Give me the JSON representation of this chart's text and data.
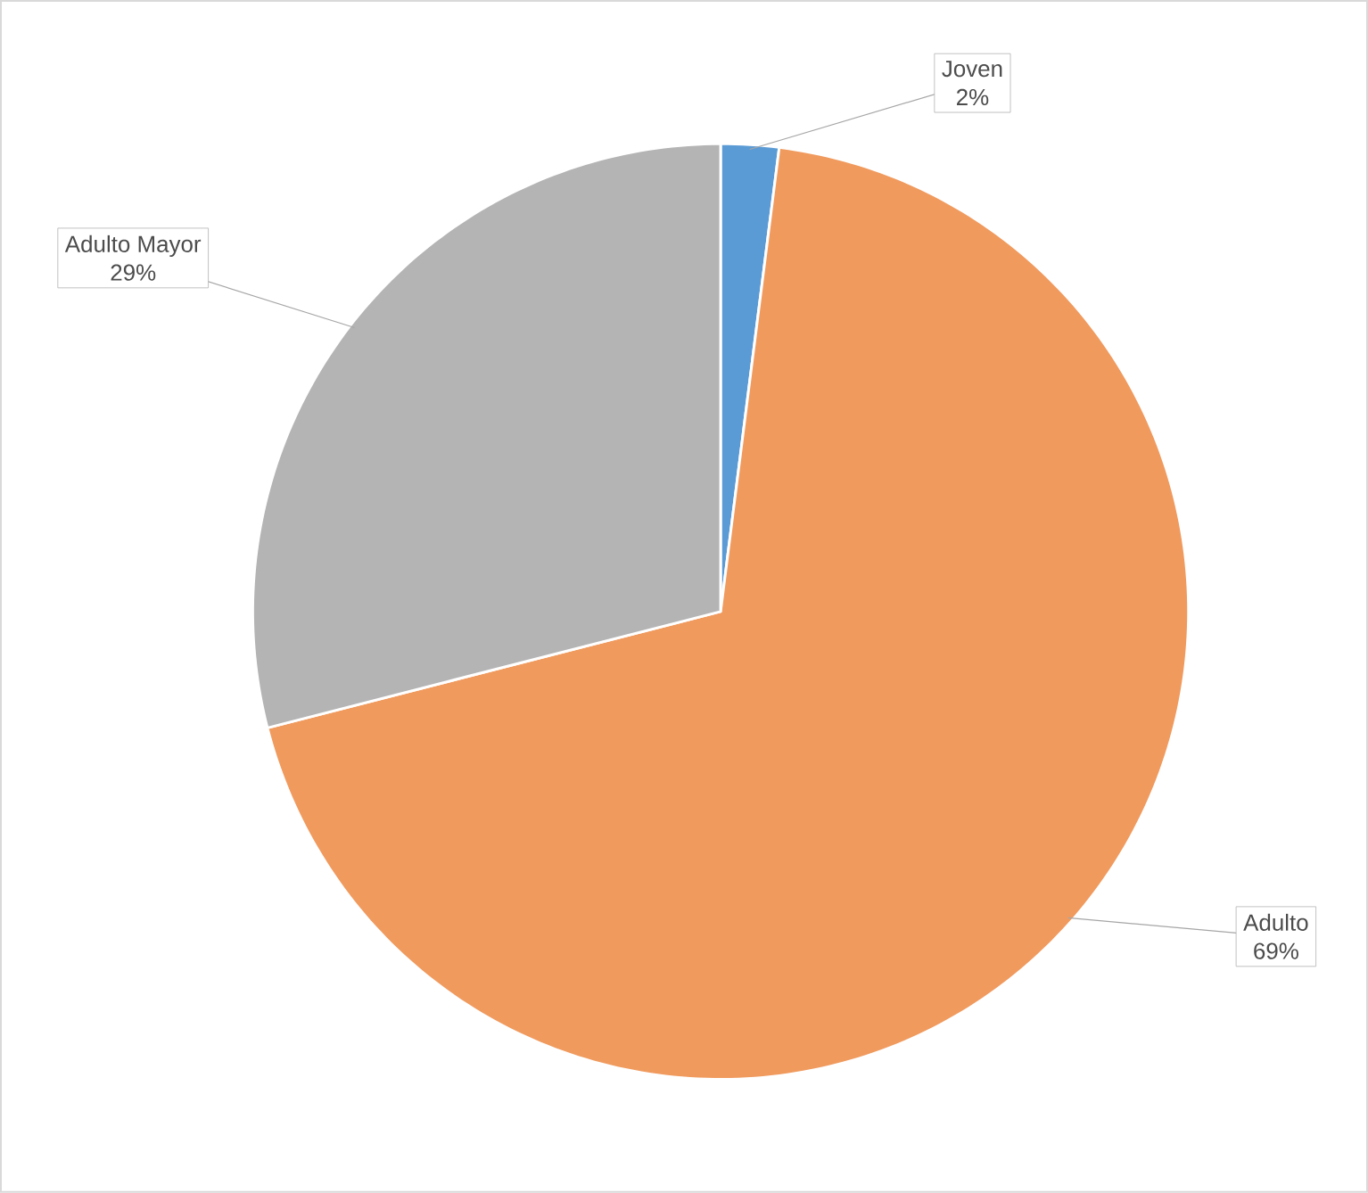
{
  "chart_data": {
    "type": "pie",
    "categories": [
      "Joven",
      "Adulto",
      "Adulto Mayor"
    ],
    "values": [
      2,
      69,
      29
    ],
    "value_labels": [
      "2%",
      "69%",
      "29%"
    ],
    "colors": [
      "#5b9bd5",
      "#f09a5e",
      "#b4b4b4"
    ]
  }
}
